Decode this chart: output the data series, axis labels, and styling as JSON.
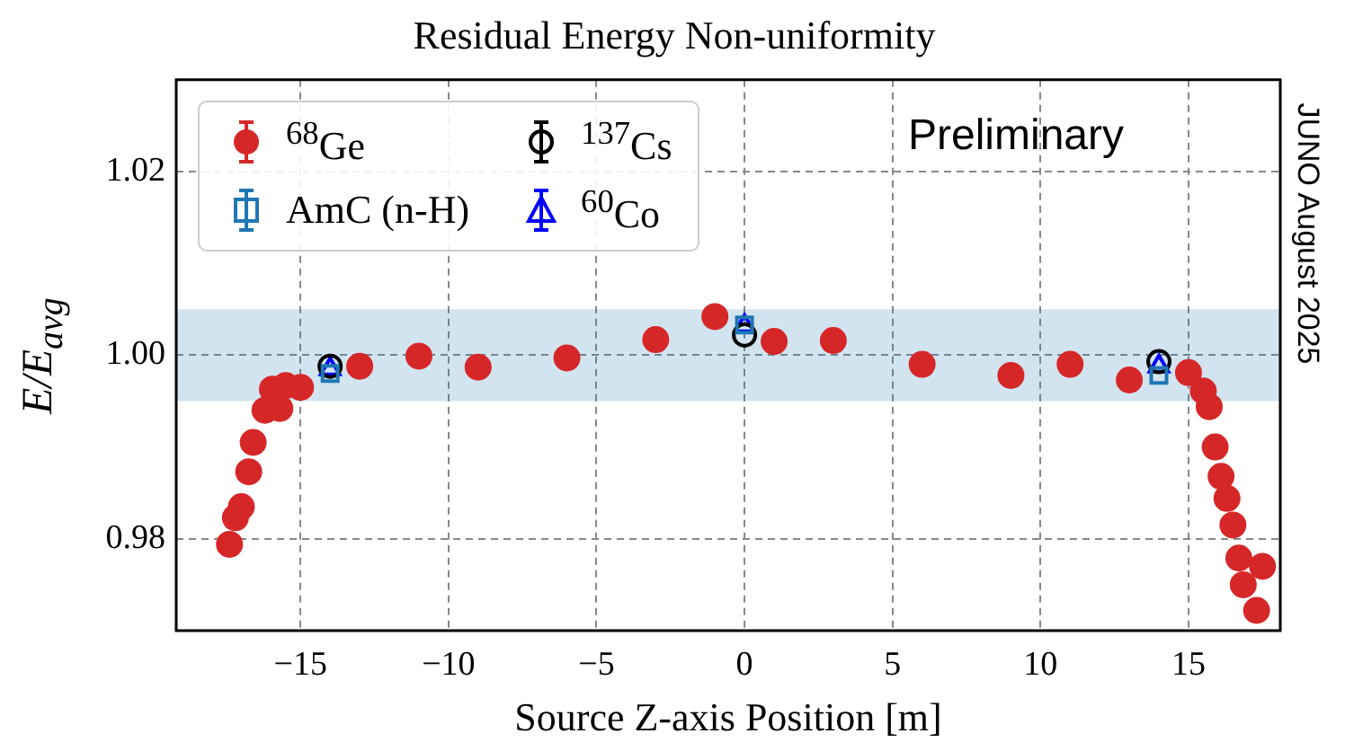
{
  "chart_data": {
    "type": "scatter",
    "title": "Residual Energy Non-uniformity",
    "xlabel": "Source Z-axis Position [m]",
    "ylabel": "E/E$_{avg}$",
    "annotations": [
      "Preliminary",
      "JUNO August 2025"
    ],
    "xlim": [
      -19.2,
      18.1
    ],
    "xticks": [
      -15,
      -10,
      -5,
      0,
      5,
      10,
      15
    ],
    "ylim": [
      0.97,
      1.03
    ],
    "yticks": [
      {
        "value": 0.98,
        "label": "0.98"
      },
      {
        "value": 1.0,
        "label": "1.00"
      },
      {
        "value": 1.02,
        "label": "1.02"
      }
    ],
    "grid": true,
    "legend": "top left",
    "bands": [
      {
        "axis": "y",
        "from": 0.995,
        "to": 1.005,
        "color": "#1f77b4"
      }
    ],
    "series": [
      {
        "name": "$^{68}$Ge",
        "color": "#d62728",
        "marker": "circle",
        "x": [
          -17.4,
          -17.2,
          -17.0,
          -16.75,
          -16.6,
          -16.4,
          -16.2,
          -15.95,
          -15.7,
          -15.5,
          -15.0,
          -13.0,
          -11.0,
          -9.0,
          -6.0,
          -3.0,
          -1.0,
          1.0,
          3.0,
          6.0,
          9.0,
          11.0,
          13.0,
          15.0,
          15.5,
          15.7,
          15.9,
          16.1,
          16.3,
          16.5,
          16.7,
          16.85,
          17.05,
          17.3,
          17.5
        ],
        "values": [
          0.9794,
          0.9823,
          0.9835,
          0.9873,
          0.9905,
          null,
          0.994,
          0.9963,
          0.9942,
          0.9967,
          0.9965,
          0.9988,
          0.9999,
          0.9987,
          0.9997,
          1.0017,
          1.0042,
          1.0015,
          1.0016,
          0.999,
          0.9978,
          0.999,
          0.9973,
          0.9981,
          0.9961,
          0.9944,
          0.99,
          0.9868,
          0.9844,
          0.9815,
          0.9779,
          0.975,
          null,
          0.9722,
          0.977
        ]
      },
      {
        "name": "AmC (n-H)",
        "color": "#1f77b4",
        "marker": "square",
        "x": [
          -14,
          0,
          14
        ],
        "values": [
          0.998,
          1.0033,
          0.9978
        ]
      },
      {
        "name": "$^{137}$Cs",
        "color": "#000000",
        "marker": "circle",
        "x": [
          -14,
          0,
          14
        ],
        "values": [
          0.9988,
          1.0022,
          0.9993
        ]
      },
      {
        "name": "$^{60}$Co",
        "color": "#0000ff",
        "marker": "triangle",
        "x": [
          -14,
          0,
          14
        ],
        "values": [
          0.9985,
          1.0032,
          0.9988
        ]
      }
    ]
  }
}
